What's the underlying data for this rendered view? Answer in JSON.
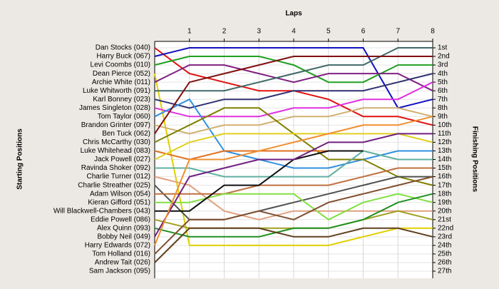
{
  "chart_data": {
    "type": "line",
    "x_label": "Laps",
    "y_label": "Starting Positions",
    "y2_label": "Finishing Positions",
    "x": [
      0,
      1,
      2,
      3,
      4,
      5,
      6,
      7,
      8
    ],
    "xlim": [
      0,
      8
    ],
    "xticks": [
      1,
      2,
      3,
      4,
      5,
      6,
      7,
      8
    ],
    "ylim": [
      1,
      27
    ],
    "y_inverted": true,
    "grid": true,
    "yticks": [
      {
        "value": 1,
        "label": "1st"
      },
      {
        "value": 2,
        "label": "2nd"
      },
      {
        "value": 3,
        "label": "3rd"
      },
      {
        "value": 4,
        "label": "4th"
      },
      {
        "value": 5,
        "label": "5th"
      },
      {
        "value": 6,
        "label": "6th"
      },
      {
        "value": 7,
        "label": "7th"
      },
      {
        "value": 8,
        "label": "8th"
      },
      {
        "value": 9,
        "label": "9th"
      },
      {
        "value": 10,
        "label": "10th"
      },
      {
        "value": 11,
        "label": "11th"
      },
      {
        "value": 12,
        "label": "12th"
      },
      {
        "value": 13,
        "label": "13th"
      },
      {
        "value": 14,
        "label": "14th"
      },
      {
        "value": 15,
        "label": "15th"
      },
      {
        "value": 16,
        "label": "16th"
      },
      {
        "value": 17,
        "label": "17th"
      },
      {
        "value": 18,
        "label": "18th"
      },
      {
        "value": 19,
        "label": "19th"
      },
      {
        "value": 20,
        "label": "20th"
      },
      {
        "value": 21,
        "label": "21st"
      },
      {
        "value": 22,
        "label": "22nd"
      },
      {
        "value": 23,
        "label": "23rd"
      },
      {
        "value": 24,
        "label": "24th"
      },
      {
        "value": 25,
        "label": "25th"
      },
      {
        "value": 26,
        "label": "26th"
      },
      {
        "value": 27,
        "label": "27th"
      }
    ],
    "series": [
      {
        "name": "Dan Stocks (040)",
        "color": "#e01010",
        "values": [
          1,
          4,
          5,
          6,
          6,
          7,
          9,
          9,
          10
        ]
      },
      {
        "name": "Harry Buck (067)",
        "color": "#1010c0",
        "values": [
          2,
          1,
          1,
          1,
          1,
          1,
          1,
          8,
          7
        ]
      },
      {
        "name": "Levi Coombs (010)",
        "color": "#20a020",
        "values": [
          3,
          2,
          2,
          2,
          3,
          5,
          5,
          3,
          3
        ]
      },
      {
        "name": "Dean Pierce (052)",
        "color": "#e0d000",
        "values": [
          4,
          24,
          24,
          24,
          24,
          24,
          23,
          22,
          22
        ]
      },
      {
        "name": "Archie White (011)",
        "color": "#802080",
        "values": [
          5,
          3,
          3,
          4,
          5,
          4,
          4,
          4,
          6
        ]
      },
      {
        "name": "Luke Whitworth (091)",
        "color": "#406868",
        "values": [
          6,
          6,
          6,
          5,
          4,
          3,
          3,
          1,
          1
        ]
      },
      {
        "name": "Karl Bonney (023)",
        "color": "#303070",
        "values": [
          7,
          8,
          7,
          7,
          6,
          6,
          6,
          5,
          4
        ]
      },
      {
        "name": "James Singleton (028)",
        "color": "#e030e0",
        "values": [
          8,
          9,
          9,
          9,
          8,
          8,
          7,
          7,
          5
        ]
      },
      {
        "name": "Tom Taylor (060)",
        "color": "#3090e0",
        "values": [
          9,
          7,
          13,
          14,
          15,
          15,
          14,
          13,
          13
        ]
      },
      {
        "name": "Brandon Grinter (097)",
        "color": "#d0b070",
        "values": [
          10,
          11,
          10,
          10,
          9,
          9,
          8,
          8,
          9
        ]
      },
      {
        "name": "Ben Tuck (062)",
        "color": "#801010",
        "values": [
          11,
          5,
          4,
          3,
          2,
          2,
          2,
          2,
          2
        ]
      },
      {
        "name": "Chris McCarthy (030)",
        "color": "#808000",
        "values": [
          12,
          10,
          8,
          8,
          11,
          14,
          14,
          16,
          17
        ]
      },
      {
        "name": "Luke Whitehead (083)",
        "color": "#e07020",
        "values": [
          13,
          14,
          13,
          13,
          13,
          13,
          null,
          null,
          null
        ]
      },
      {
        "name": "Jack Powell (027)",
        "color": "#e0d020",
        "values": [
          14,
          12,
          11,
          11,
          11,
          11,
          11,
          11,
          12
        ]
      },
      {
        "name": "Ravinda Shoker (092)",
        "color": "#60b0a0",
        "values": [
          15,
          15,
          16,
          16,
          16,
          16,
          13,
          14,
          14
        ]
      },
      {
        "name": "Charlie Turner (012)",
        "color": "#e0a080",
        "values": [
          16,
          17,
          20,
          21,
          20,
          20,
          20,
          20,
          20
        ]
      },
      {
        "name": "Charlie Streather (025)",
        "color": "#505050",
        "values": [
          17,
          21,
          21,
          20,
          19,
          18,
          17,
          16,
          16
        ]
      },
      {
        "name": "Adam Wilson (054)",
        "color": "#c07040",
        "values": [
          18,
          18,
          18,
          17,
          17,
          17,
          16,
          15,
          15
        ]
      },
      {
        "name": "Kieran Gifford (051)",
        "color": "#80e040",
        "values": [
          19,
          19,
          18,
          18,
          18,
          21,
          19,
          18,
          19
        ]
      },
      {
        "name": "Will Blackwell-Chambers (043)",
        "color": "#101010",
        "values": [
          20,
          20,
          17,
          17,
          14,
          13,
          13,
          null,
          null
        ]
      },
      {
        "name": "Eddie Powell (086)",
        "color": "#a0a020",
        "values": [
          21,
          22,
          22,
          22,
          22,
          22,
          21,
          20,
          21
        ]
      },
      {
        "name": "Alex Quinn (093)",
        "color": "#209020",
        "values": [
          22,
          23,
          23,
          23,
          22,
          22,
          21,
          19,
          18
        ]
      },
      {
        "name": "Bobby Neil (049)",
        "color": "#702080",
        "values": [
          23,
          16,
          15,
          14,
          14,
          12,
          12,
          11,
          11
        ]
      },
      {
        "name": "Harry Edwards (072)",
        "color": "#f09030",
        "values": [
          24,
          14,
          14,
          13,
          12,
          11,
          10,
          10,
          9
        ]
      },
      {
        "name": "Tom Holland (016)",
        "color": "#805030",
        "values": [
          25,
          21,
          21,
          20,
          21,
          19,
          18,
          17,
          16
        ]
      },
      {
        "name": "Andrew Tait (026)",
        "color": "#604020",
        "values": [
          26,
          22,
          22,
          22,
          23,
          23,
          22,
          22,
          23
        ]
      },
      {
        "name": "Sam Jackson (095)",
        "color": "#909090",
        "values": [
          27,
          null,
          null,
          null,
          null,
          null,
          null,
          null,
          null
        ]
      }
    ]
  }
}
